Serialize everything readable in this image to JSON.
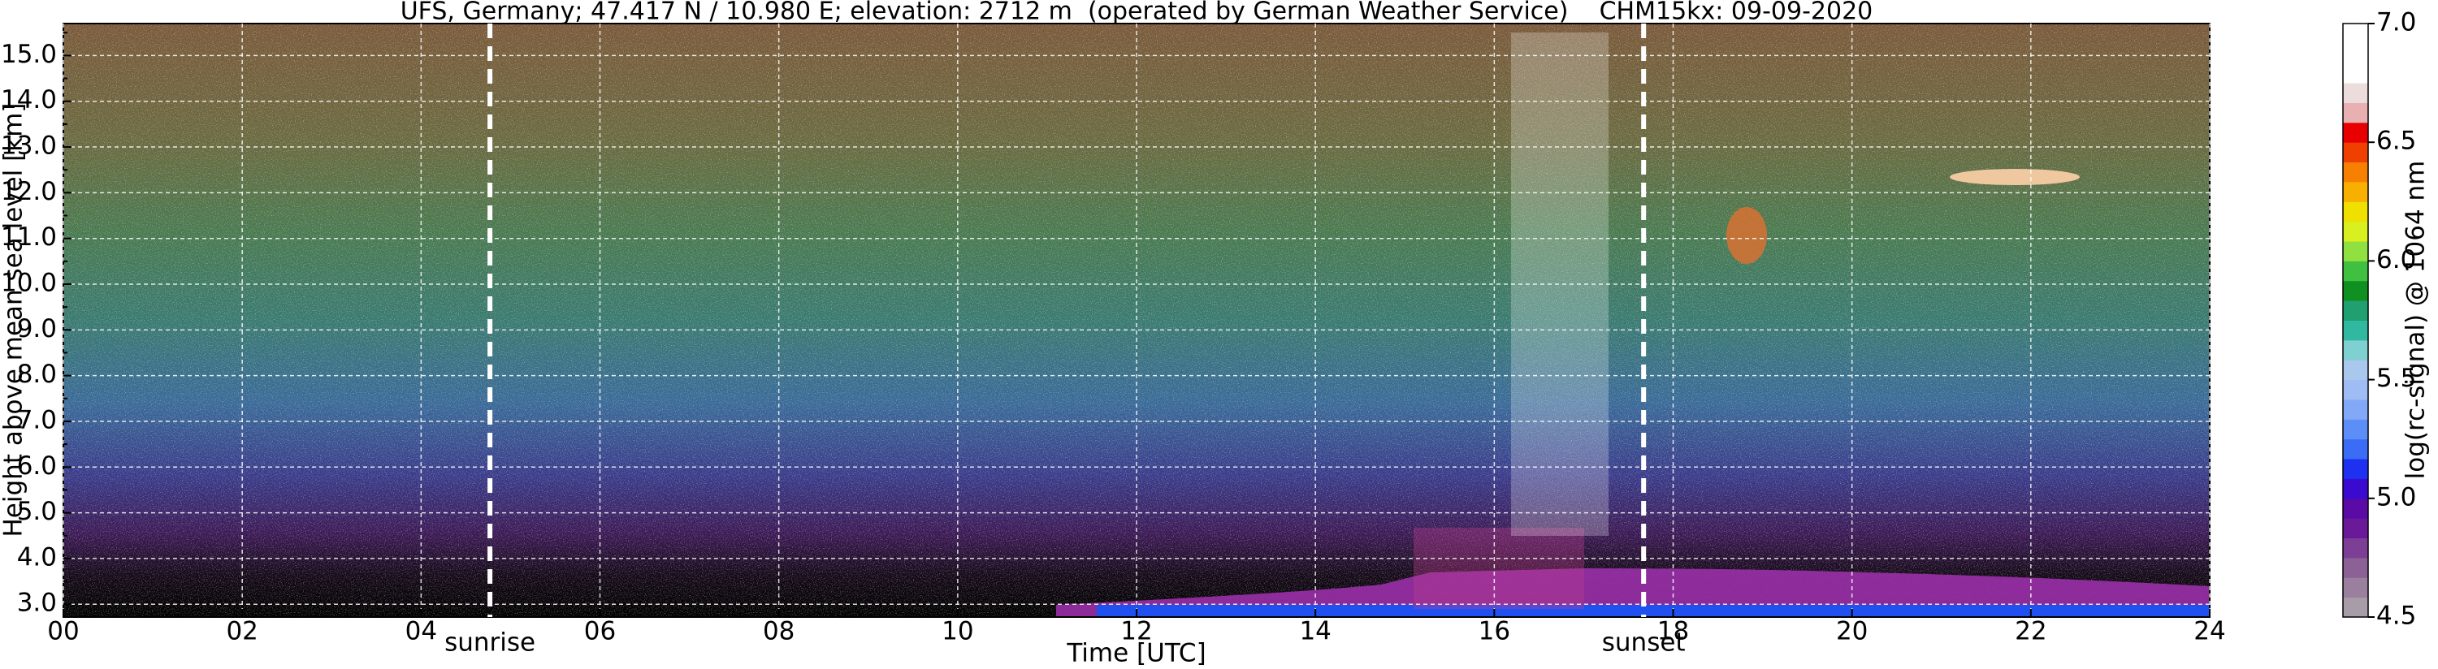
{
  "chart_data": {
    "type": "heatmap",
    "title": "UFS, Germany; 47.417 N / 10.980 E; elevation: 2712 m  (operated by German Weather Service)    CHM15kx: 09-09-2020",
    "xlabel": "Time [UTC]",
    "ylabel": "Height above mean sea level [km]",
    "xlim": [
      0,
      24
    ],
    "xticks": [
      {
        "value": 0,
        "label": "00"
      },
      {
        "value": 2,
        "label": "02"
      },
      {
        "value": 4,
        "label": "04"
      },
      {
        "value": 6,
        "label": "06"
      },
      {
        "value": 8,
        "label": "08"
      },
      10,
      12,
      14,
      16,
      18,
      20,
      22,
      24
    ],
    "ylim": [
      2.72,
      15.7
    ],
    "yticks": [
      {
        "value": 3,
        "label": "3.0"
      },
      3.5,
      {
        "value": 4,
        "label": "4.0"
      },
      4.5,
      {
        "value": 5,
        "label": "5.0"
      },
      5.5,
      {
        "value": 6,
        "label": "6.0"
      },
      6.5,
      {
        "value": 7,
        "label": "7.0"
      },
      7.5,
      {
        "value": 8,
        "label": "8.0"
      },
      8.5,
      {
        "value": 9,
        "label": "9.0"
      },
      9.5,
      {
        "value": 10,
        "label": "10.0"
      },
      10.5,
      {
        "value": 11,
        "label": "11.0"
      },
      11.5,
      {
        "value": 12,
        "label": "12.0"
      },
      12.5,
      {
        "value": 13,
        "label": "13.0"
      },
      13.5,
      {
        "value": 14,
        "label": "14.0"
      },
      14.5,
      {
        "value": 15,
        "label": "15.0"
      },
      15.5
    ],
    "grid": true,
    "annotations": [
      {
        "text": "sunrise",
        "x": 4.77
      },
      {
        "text": "sunset",
        "x": 17.67
      }
    ],
    "colorbar": {
      "label": "log(rc-signal) @ 1064 nm",
      "lim": [
        4.5,
        7.0
      ],
      "ticks": [
        4.5,
        {
          "value": 5,
          "label": "5.0"
        },
        5.5,
        {
          "value": 6,
          "label": "6.0"
        },
        6.5,
        {
          "value": 7,
          "label": "7.0"
        }
      ],
      "colors": [
        "#a89ca8",
        "#9a7f9e",
        "#8c6296",
        "#7d3f95",
        "#6a1a98",
        "#5a0aa5",
        "#3a0ad0",
        "#1e30f0",
        "#3a6cf5",
        "#5c8ef7",
        "#82a8f8",
        "#9fbcf5",
        "#aac8ee",
        "#7fd0d0",
        "#30b8a0",
        "#20a070",
        "#109020",
        "#40c040",
        "#90e040",
        "#d8f020",
        "#f0e000",
        "#f8b000",
        "#f88000",
        "#f04000",
        "#e80000",
        "#e8b0b0",
        "#ecdcdc",
        "#ffffff",
        "#ffffff",
        "#ffffff"
      ]
    }
  }
}
